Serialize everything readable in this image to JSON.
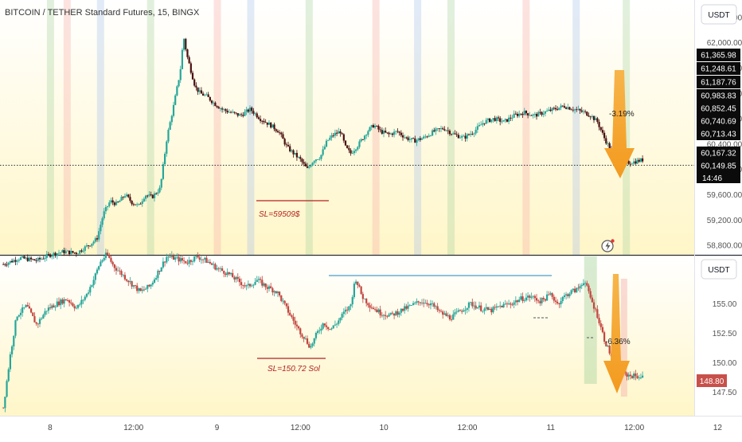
{
  "header": {
    "symbol_title": "BITCOIN / TETHER Standard Futures, 15, BINGX"
  },
  "currency_buttons": [
    "USDT",
    "USDT"
  ],
  "price_tags": {
    "btc": [
      "61,365.98",
      "61,248.61",
      "61,187.76",
      "60,983.83",
      "60,852.45",
      "60,740.69",
      "60,713.43",
      "60,167.32",
      "60,149.85"
    ],
    "btc_countdown": "14:46",
    "sol_last": "148.80"
  },
  "chart_data": [
    {
      "type": "candlestick",
      "panel": "top",
      "instrument": "BTCUSDT",
      "title": "BITCOIN / TETHER Standard Futures, 15, BINGX",
      "y_unit": "USDT",
      "y_ticks": [
        "62,400.00",
        "62,000.00",
        "61,600.00",
        "61,200.00",
        "60,800.00",
        "60,400.00",
        "60,000.00",
        "59,600.00",
        "59,200.00",
        "58,800.00"
      ],
      "y_tick_values": [
        62400,
        62000,
        61600,
        61200,
        60800,
        60400,
        60000,
        59600,
        59200,
        58800
      ],
      "ylim": [
        58650,
        62650
      ],
      "x_range": [
        7.7,
        11.85
      ],
      "last_price": 60149.85,
      "path": [
        [
          7.72,
          58500
        ],
        [
          7.82,
          58600
        ],
        [
          7.92,
          58560
        ],
        [
          8.0,
          58650
        ],
        [
          8.08,
          58700
        ],
        [
          8.16,
          58680
        ],
        [
          8.24,
          58820
        ],
        [
          8.28,
          58900
        ],
        [
          8.32,
          59300
        ],
        [
          8.36,
          59500
        ],
        [
          8.4,
          59450
        ],
        [
          8.45,
          59600
        ],
        [
          8.49,
          59480
        ],
        [
          8.53,
          59420
        ],
        [
          8.57,
          59600
        ],
        [
          8.61,
          59560
        ],
        [
          8.66,
          59700
        ],
        [
          8.7,
          60500
        ],
        [
          8.74,
          61000
        ],
        [
          8.78,
          61550
        ],
        [
          8.8,
          62100
        ],
        [
          8.82,
          61800
        ],
        [
          8.84,
          61600
        ],
        [
          8.87,
          61300
        ],
        [
          8.9,
          61200
        ],
        [
          8.94,
          61150
        ],
        [
          8.98,
          61050
        ],
        [
          9.03,
          60950
        ],
        [
          9.08,
          60900
        ],
        [
          9.14,
          60850
        ],
        [
          9.2,
          60950
        ],
        [
          9.26,
          60800
        ],
        [
          9.32,
          60700
        ],
        [
          9.37,
          60600
        ],
        [
          9.42,
          60350
        ],
        [
          9.46,
          60250
        ],
        [
          9.5,
          60150
        ],
        [
          9.54,
          60000
        ],
        [
          9.58,
          60150
        ],
        [
          9.62,
          60200
        ],
        [
          9.66,
          60450
        ],
        [
          9.7,
          60550
        ],
        [
          9.74,
          60600
        ],
        [
          9.77,
          60350
        ],
        [
          9.8,
          60250
        ],
        [
          9.85,
          60400
        ],
        [
          9.9,
          60600
        ],
        [
          9.94,
          60700
        ],
        [
          9.98,
          60600
        ],
        [
          10.03,
          60550
        ],
        [
          10.08,
          60600
        ],
        [
          10.13,
          60500
        ],
        [
          10.18,
          60450
        ],
        [
          10.24,
          60500
        ],
        [
          10.3,
          60600
        ],
        [
          10.36,
          60650
        ],
        [
          10.42,
          60550
        ],
        [
          10.48,
          60500
        ],
        [
          10.54,
          60600
        ],
        [
          10.6,
          60750
        ],
        [
          10.66,
          60800
        ],
        [
          10.72,
          60750
        ],
        [
          10.78,
          60850
        ],
        [
          10.84,
          60900
        ],
        [
          10.9,
          60850
        ],
        [
          10.96,
          60900
        ],
        [
          11.02,
          60950
        ],
        [
          11.08,
          61000
        ],
        [
          11.14,
          60950
        ],
        [
          11.2,
          60900
        ],
        [
          11.24,
          60850
        ],
        [
          11.28,
          60750
        ],
        [
          11.32,
          60500
        ],
        [
          11.36,
          60300
        ],
        [
          11.4,
          60200
        ],
        [
          11.44,
          60100
        ],
        [
          11.5,
          60120
        ],
        [
          11.55,
          60150
        ]
      ],
      "annotations": [
        {
          "text": "SL=59509$",
          "price": 59509
        },
        {
          "text": "-3.19%",
          "kind": "projection arrow down"
        }
      ],
      "highlight_days": [
        8.0,
        8.1,
        8.3,
        8.6,
        9.0,
        9.2,
        9.55,
        9.95,
        10.2,
        10.4,
        10.85,
        11.15,
        11.45
      ]
    },
    {
      "type": "candlestick",
      "panel": "bottom",
      "instrument": "SOL",
      "y_unit": "USDT",
      "y_ticks": [
        "157.50",
        "155.00",
        "152.50",
        "150.00",
        "147.50"
      ],
      "y_tick_values": [
        157.5,
        155,
        152.5,
        150,
        147.5
      ],
      "ylim": [
        145.5,
        159
      ],
      "x_range": [
        7.7,
        11.85
      ],
      "last_price": 148.8,
      "path": [
        [
          7.72,
          146.2
        ],
        [
          7.76,
          150.5
        ],
        [
          7.8,
          154.0
        ],
        [
          7.86,
          154.8
        ],
        [
          7.92,
          153.2
        ],
        [
          7.98,
          154.5
        ],
        [
          8.04,
          155.0
        ],
        [
          8.1,
          155.4
        ],
        [
          8.16,
          154.6
        ],
        [
          8.22,
          155.8
        ],
        [
          8.26,
          157.0
        ],
        [
          8.3,
          158.5
        ],
        [
          8.34,
          159.2
        ],
        [
          8.38,
          158.2
        ],
        [
          8.43,
          157.5
        ],
        [
          8.48,
          156.8
        ],
        [
          8.54,
          156.0
        ],
        [
          8.6,
          156.5
        ],
        [
          8.66,
          158.0
        ],
        [
          8.7,
          159.0
        ],
        [
          8.76,
          158.8
        ],
        [
          8.82,
          158.5
        ],
        [
          8.88,
          159.0
        ],
        [
          8.94,
          158.6
        ],
        [
          9.0,
          158.0
        ],
        [
          9.06,
          157.6
        ],
        [
          9.12,
          157.0
        ],
        [
          9.18,
          156.4
        ],
        [
          9.24,
          157.0
        ],
        [
          9.3,
          156.4
        ],
        [
          9.36,
          156.0
        ],
        [
          9.42,
          154.5
        ],
        [
          9.48,
          153.0
        ],
        [
          9.52,
          152.2
        ],
        [
          9.56,
          151.3
        ],
        [
          9.6,
          152.5
        ],
        [
          9.64,
          153.4
        ],
        [
          9.68,
          152.8
        ],
        [
          9.72,
          153.4
        ],
        [
          9.76,
          154.2
        ],
        [
          9.8,
          154.8
        ],
        [
          9.83,
          157.2
        ],
        [
          9.87,
          155.6
        ],
        [
          9.92,
          154.8
        ],
        [
          9.98,
          154.2
        ],
        [
          10.04,
          154.0
        ],
        [
          10.1,
          154.4
        ],
        [
          10.16,
          154.8
        ],
        [
          10.22,
          155.2
        ],
        [
          10.28,
          155.0
        ],
        [
          10.34,
          154.2
        ],
        [
          10.4,
          153.8
        ],
        [
          10.46,
          154.4
        ],
        [
          10.52,
          155.0
        ],
        [
          10.58,
          154.6
        ],
        [
          10.64,
          154.4
        ],
        [
          10.7,
          154.8
        ],
        [
          10.76,
          155.0
        ],
        [
          10.82,
          155.4
        ],
        [
          10.88,
          155.6
        ],
        [
          10.94,
          155.2
        ],
        [
          11.0,
          155.8
        ],
        [
          11.04,
          155.0
        ],
        [
          11.08,
          155.6
        ],
        [
          11.12,
          156.0
        ],
        [
          11.16,
          156.2
        ],
        [
          11.2,
          157.0
        ],
        [
          11.24,
          155.4
        ],
        [
          11.28,
          154.0
        ],
        [
          11.32,
          152.0
        ],
        [
          11.36,
          150.6
        ],
        [
          11.4,
          149.8
        ],
        [
          11.44,
          149.0
        ],
        [
          11.48,
          148.9
        ],
        [
          11.55,
          148.8
        ]
      ],
      "annotations": [
        {
          "text": "SL=150.72 Sol",
          "price": 150.72
        },
        {
          "text": "-6.36%",
          "kind": "projection arrow down"
        }
      ]
    }
  ],
  "x_axis": {
    "labels": [
      "8",
      "12:00",
      "9",
      "12:00",
      "10",
      "12:00",
      "11",
      "12:00",
      "12"
    ],
    "values": [
      8.0,
      8.5,
      9.0,
      9.5,
      10.0,
      10.5,
      11.0,
      11.5,
      12.0
    ]
  },
  "colors": {
    "up": "#26a69a",
    "down": "#4a1010",
    "down_sol": "#c2453f",
    "arrow": "#f5a623",
    "sl_line": "#b22222",
    "sl_text": "#b22222",
    "resistance_line": "#4a9fc7",
    "tag_dark": "#0b0b0b",
    "tag_red": "#c8504a",
    "band_green": "#a8d5a0",
    "band_pink": "#f5b0a8",
    "band_blue": "#a9c4ec",
    "gradient_top": "#fff5c4"
  }
}
